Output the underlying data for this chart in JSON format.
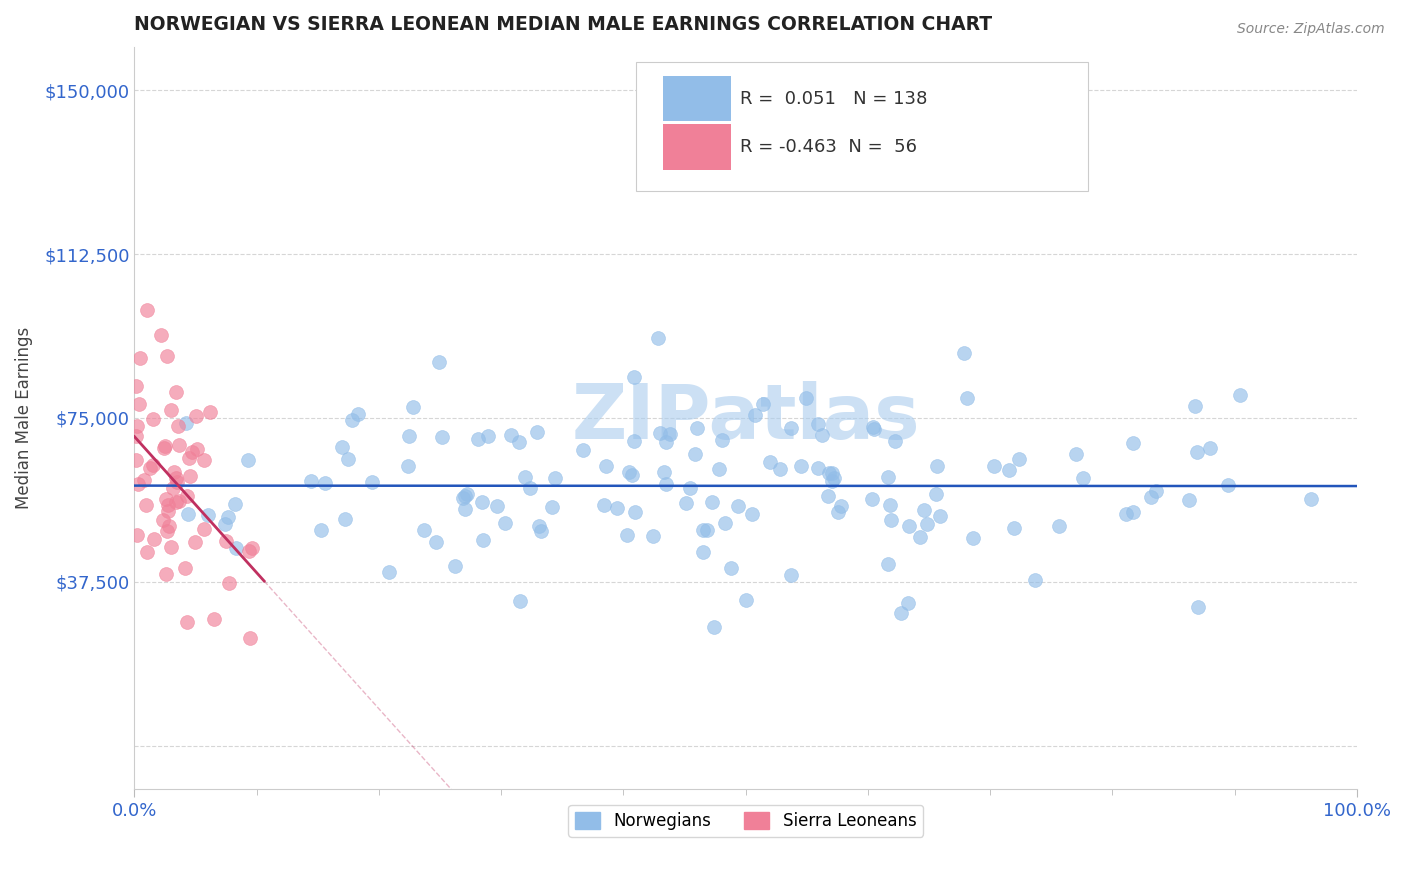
{
  "title": "NORWEGIAN VS SIERRA LEONEAN MEDIAN MALE EARNINGS CORRELATION CHART",
  "source": "Source: ZipAtlas.com",
  "ylabel": "Median Male Earnings",
  "xlim": [
    0,
    1
  ],
  "ylim": [
    -10000,
    160000
  ],
  "yticks": [
    0,
    37500,
    75000,
    112500,
    150000
  ],
  "ytick_labels": [
    "",
    "$37,500",
    "$75,000",
    "$112,500",
    "$150,000"
  ],
  "r_norwegian": 0.051,
  "n_norwegian": 138,
  "r_sierraleonean": -0.463,
  "n_sierraleonean": 56,
  "norwegian_color": "#92BDE8",
  "sierraleonean_color": "#F08098",
  "trend_norwegian_color": "#2255BB",
  "trend_sierraleonean_color": "#C03060",
  "background_color": "#FFFFFF",
  "grid_color": "#CCCCCC",
  "title_color": "#222222",
  "axis_label_color": "#444444",
  "tick_label_color_y": "#3366CC",
  "watermark": "ZIPatlas",
  "watermark_color": "#AACCEE",
  "seed": 42
}
